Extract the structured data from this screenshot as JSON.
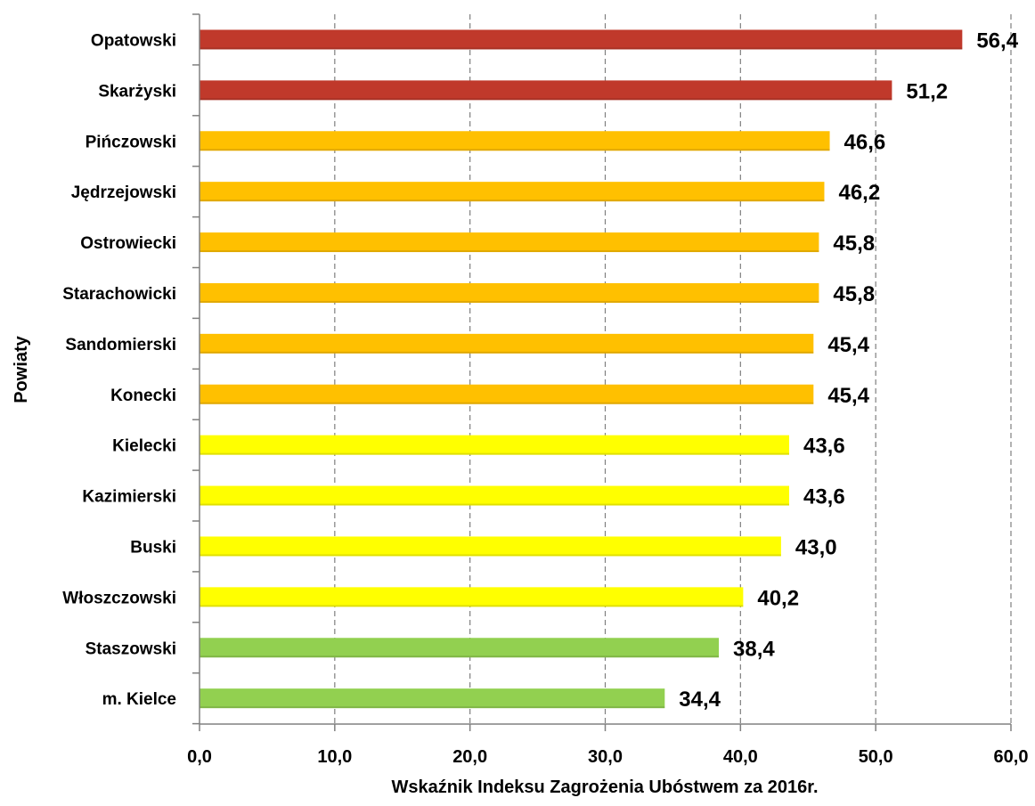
{
  "chart_data": {
    "type": "bar",
    "orientation": "horizontal",
    "categories": [
      "Opatowski",
      "Skarżyski",
      "Pińczowski",
      "Jędrzejowski",
      "Ostrowiecki",
      "Starachowicki",
      "Sandomierski",
      "Konecki",
      "Kielecki",
      "Kazimierski",
      "Buski",
      "Włoszczowski",
      "Staszowski",
      "m. Kielce"
    ],
    "values": [
      56.4,
      51.2,
      46.6,
      46.2,
      45.8,
      45.8,
      45.4,
      45.4,
      43.6,
      43.6,
      43.0,
      40.2,
      38.4,
      34.4
    ],
    "value_labels": [
      "56,4",
      "51,2",
      "46,6",
      "46,2",
      "45,8",
      "45,8",
      "45,4",
      "45,4",
      "43,6",
      "43,6",
      "43,0",
      "40,2",
      "38,4",
      "34,4"
    ],
    "bar_colors": [
      "#c0392b",
      "#c0392b",
      "#ffc000",
      "#ffc000",
      "#ffc000",
      "#ffc000",
      "#ffc000",
      "#ffc000",
      "#ffff00",
      "#ffff00",
      "#ffff00",
      "#ffff00",
      "#92d050",
      "#92d050"
    ],
    "xlabel": "Wskaźnik Indeksu Zagrożenia Ubóstwem za 2016r.",
    "ylabel": "Powiaty",
    "xlim": [
      0,
      60
    ],
    "xticks": [
      0,
      10,
      20,
      30,
      40,
      50,
      60
    ],
    "xtick_labels": [
      "0,0",
      "10,0",
      "20,0",
      "30,0",
      "40,0",
      "50,0",
      "60,0"
    ],
    "grid": "vertical dashed",
    "legend": "none"
  }
}
